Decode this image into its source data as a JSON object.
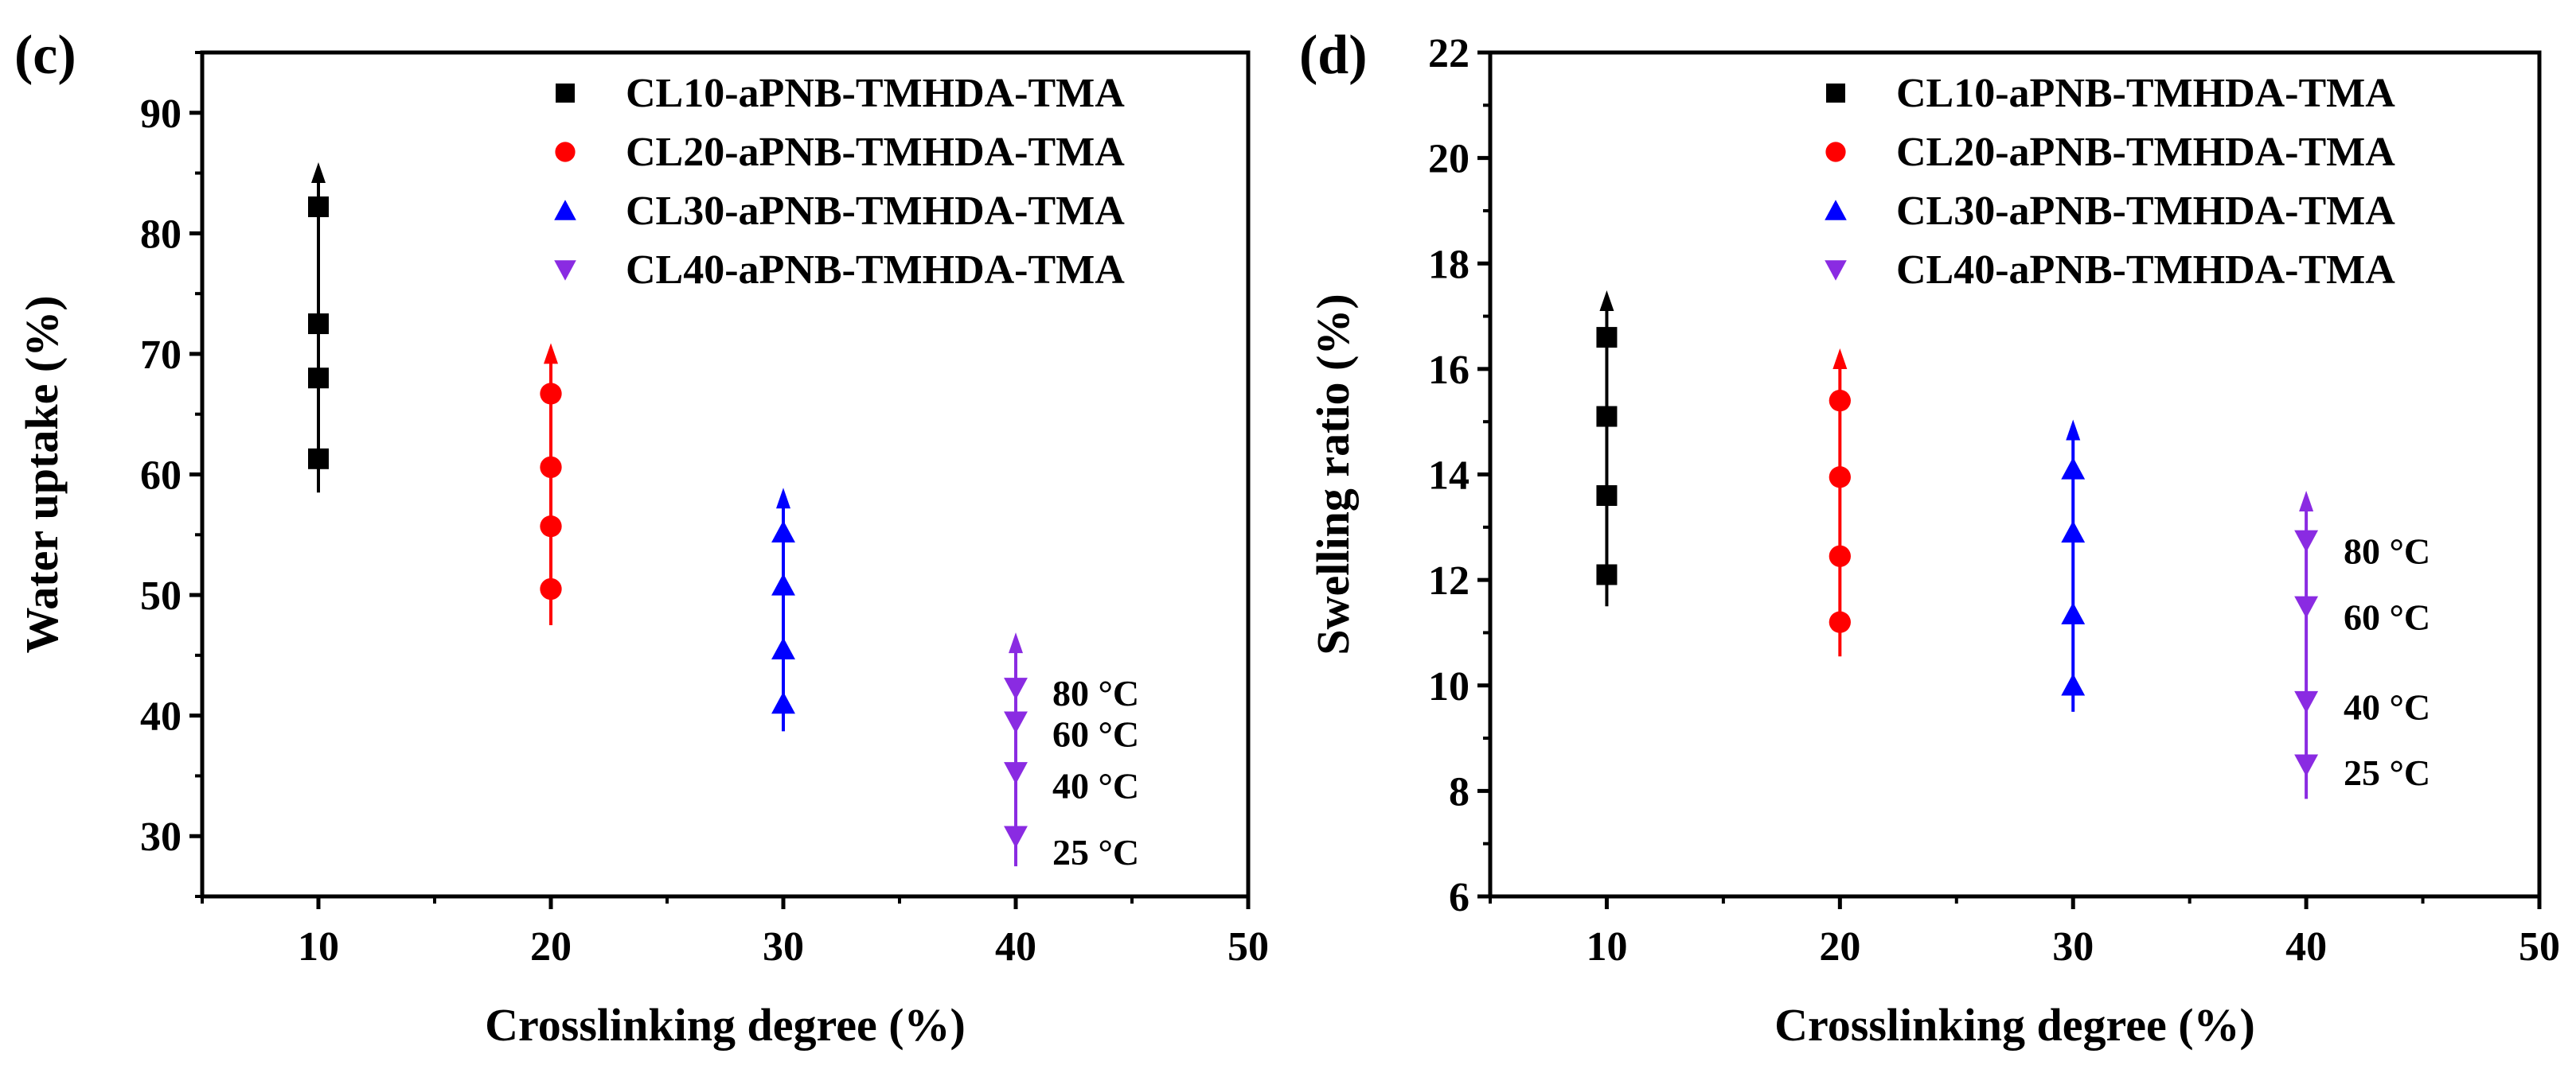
{
  "chart_data": [
    {
      "type": "scatter",
      "panel_label": "(c)",
      "title": "",
      "xlabel": "Crosslinking degree (%)",
      "ylabel": "Water uptake (%)",
      "xlim": [
        5,
        50
      ],
      "ylim": [
        25,
        95
      ],
      "xticks": [
        10,
        20,
        30,
        40,
        50
      ],
      "xtick_labels": [
        "10",
        "20",
        "30",
        "40",
        "50"
      ],
      "yticks": [
        30,
        40,
        50,
        60,
        70,
        80,
        90
      ],
      "ytick_labels": [
        "30",
        "40",
        "50",
        "60",
        "70",
        "80",
        "90"
      ],
      "legend_position": "top-right",
      "series": [
        {
          "name": "CL10-aPNB-TMHDA-TMA",
          "color": "#000000",
          "marker": "square",
          "x": 10,
          "values": [
            61.3,
            68.0,
            72.5,
            82.2
          ],
          "arrow_range": [
            58.5,
            85.5
          ]
        },
        {
          "name": "CL20-aPNB-TMHDA-TMA",
          "color": "#ff0000",
          "marker": "circle",
          "x": 20,
          "values": [
            50.5,
            55.7,
            60.6,
            66.7
          ],
          "arrow_range": [
            47.5,
            70.5
          ]
        },
        {
          "name": "CL30-aPNB-TMHDA-TMA",
          "color": "#0000ff",
          "marker": "triangle-up",
          "x": 30,
          "values": [
            41.0,
            45.5,
            50.8,
            55.2
          ],
          "arrow_range": [
            38.7,
            58.5
          ]
        },
        {
          "name": "CL40-aPNB-TMHDA-TMA",
          "color": "#8a2be2",
          "marker": "triangle-down",
          "x": 40,
          "values": [
            30.0,
            35.3,
            39.5,
            42.3
          ],
          "arrow_range": [
            27.5,
            46.5
          ]
        }
      ],
      "temperature_labels": [
        {
          "text": "80 °C",
          "y": 41.9
        },
        {
          "text": "60 °C",
          "y": 38.5
        },
        {
          "text": "40 °C",
          "y": 34.2
        },
        {
          "text": "25 °C",
          "y": 28.7
        }
      ]
    },
    {
      "type": "scatter",
      "panel_label": "(d)",
      "title": "",
      "xlabel": "Crosslinking degree (%)",
      "ylabel": "Swelling ratio (%)",
      "xlim": [
        5,
        50
      ],
      "ylim": [
        6,
        22
      ],
      "xticks": [
        10,
        20,
        30,
        40,
        50
      ],
      "xtick_labels": [
        "10",
        "20",
        "30",
        "40",
        "50"
      ],
      "yticks": [
        6,
        8,
        10,
        12,
        14,
        16,
        18,
        20,
        22
      ],
      "ytick_labels": [
        "6",
        "8",
        "10",
        "12",
        "14",
        "16",
        "18",
        "20",
        "22"
      ],
      "legend_position": "top-right",
      "series": [
        {
          "name": "CL10-aPNB-TMHDA-TMA",
          "color": "#000000",
          "marker": "square",
          "x": 10,
          "values": [
            12.1,
            13.6,
            15.1,
            16.6
          ],
          "arrow_range": [
            11.5,
            17.4
          ]
        },
        {
          "name": "CL20-aPNB-TMHDA-TMA",
          "color": "#ff0000",
          "marker": "circle",
          "x": 20,
          "values": [
            11.2,
            12.45,
            13.95,
            15.4
          ],
          "arrow_range": [
            10.55,
            16.3
          ]
        },
        {
          "name": "CL30-aPNB-TMHDA-TMA",
          "color": "#0000ff",
          "marker": "triangle-up",
          "x": 30,
          "values": [
            10.0,
            11.35,
            12.9,
            14.1
          ],
          "arrow_range": [
            9.5,
            14.95
          ]
        },
        {
          "name": "CL40-aPNB-TMHDA-TMA",
          "color": "#8a2be2",
          "marker": "triangle-down",
          "x": 40,
          "values": [
            8.5,
            9.7,
            11.5,
            12.75
          ],
          "arrow_range": [
            7.85,
            13.6
          ]
        }
      ],
      "temperature_labels": [
        {
          "text": "80 °C",
          "y": 12.55
        },
        {
          "text": "60 °C",
          "y": 11.3
        },
        {
          "text": "40 °C",
          "y": 9.6
        },
        {
          "text": "25 °C",
          "y": 8.35
        }
      ]
    }
  ]
}
